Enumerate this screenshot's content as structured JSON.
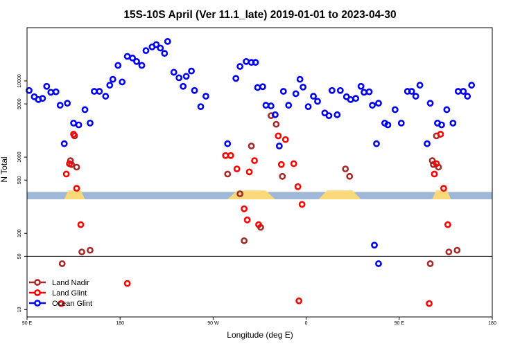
{
  "chart_data": {
    "type": "scatter",
    "title": "15S-10S April (Ver 11.1_late)   2019-01-01 to 2023-04-30",
    "xlabel": "Longitude (deg E)",
    "ylabel": "N Total",
    "x_ticks": [
      {
        "value": 90,
        "label": "90 E"
      },
      {
        "value": 180,
        "label": "180"
      },
      {
        "value": 270,
        "label": "90 W"
      },
      {
        "value": 360,
        "label": "0"
      },
      {
        "value": 450,
        "label": "90 E"
      },
      {
        "value": 540,
        "label": "180"
      }
    ],
    "xlim": [
      90,
      540
    ],
    "y_scale": "log",
    "ylim": [
      8,
      50000
    ],
    "y_ticks": [
      {
        "value": 10,
        "label": "10"
      },
      {
        "value": 50,
        "label": "50"
      },
      {
        "value": 100,
        "label": "100"
      },
      {
        "value": 500,
        "label": "500"
      },
      {
        "value": 1000,
        "label": "1000"
      },
      {
        "value": 5000,
        "label": "5000"
      },
      {
        "value": 10000,
        "label": "10000"
      }
    ],
    "reference_line_y": 50,
    "legend_position": "bottom-left",
    "colors": {
      "land_nadir": "#a52a2a",
      "land_glint": "#ff0000",
      "ocean_glint": "#0000ee",
      "ocean_band": "#a0b8d8",
      "land_band": "#f8d878"
    },
    "band_y_range": [
      280,
      350
    ],
    "land_segments": [
      [
        126,
        146
      ],
      [
        284,
        330
      ],
      [
        372,
        413
      ],
      [
        482,
        500
      ]
    ],
    "series": [
      {
        "name": "Land Nadir",
        "color": "#a52a2a",
        "points": [
          [
            124,
            40
          ],
          [
            132,
            900
          ],
          [
            133,
            800
          ],
          [
            136,
            1900
          ],
          [
            138,
            740
          ],
          [
            143,
            57
          ],
          [
            151,
            60
          ],
          [
            284,
            600
          ],
          [
            296,
            330
          ],
          [
            300,
            80
          ],
          [
            307,
            1400
          ],
          [
            316,
            120
          ],
          [
            326,
            3500
          ],
          [
            331,
            2700
          ],
          [
            337,
            560
          ],
          [
            398,
            700
          ],
          [
            402,
            560
          ],
          [
            480,
            40
          ],
          [
            482,
            900
          ],
          [
            483,
            800
          ],
          [
            486,
            1900
          ],
          [
            488,
            740
          ],
          [
            498,
            57
          ],
          [
            506,
            60
          ]
        ]
      },
      {
        "name": "Land Glint",
        "color": "#ff0000",
        "points": [
          [
            123,
            12
          ],
          [
            128,
            600
          ],
          [
            131,
            820
          ],
          [
            135,
            2000
          ],
          [
            138,
            390
          ],
          [
            142,
            130
          ],
          [
            187,
            22
          ],
          [
            282,
            1050
          ],
          [
            287,
            1050
          ],
          [
            293,
            700
          ],
          [
            300,
            210
          ],
          [
            303,
            150
          ],
          [
            305,
            640
          ],
          [
            310,
            900
          ],
          [
            314,
            130
          ],
          [
            333,
            1900
          ],
          [
            336,
            800
          ],
          [
            340,
            1700
          ],
          [
            348,
            820
          ],
          [
            352,
            410
          ],
          [
            356,
            240
          ],
          [
            353,
            13
          ],
          [
            479,
            12
          ],
          [
            484,
            600
          ],
          [
            486,
            820
          ],
          [
            490,
            2000
          ],
          [
            493,
            390
          ],
          [
            497,
            130
          ]
        ]
      },
      {
        "name": "Ocean Glint",
        "color": "#0000ee",
        "points": [
          [
            92,
            7500
          ],
          [
            97,
            6200
          ],
          [
            101,
            5700
          ],
          [
            105,
            5900
          ],
          [
            109,
            8500
          ],
          [
            113,
            7100
          ],
          [
            118,
            7200
          ],
          [
            122,
            4800
          ],
          [
            126,
            1500
          ],
          [
            129,
            5100
          ],
          [
            135,
            2800
          ],
          [
            140,
            2650
          ],
          [
            146,
            4200
          ],
          [
            151,
            2800
          ],
          [
            155,
            7300
          ],
          [
            160,
            7300
          ],
          [
            166,
            6300
          ],
          [
            170,
            8800
          ],
          [
            173,
            10500
          ],
          [
            178,
            16000
          ],
          [
            182,
            9700
          ],
          [
            187,
            21000
          ],
          [
            192,
            20000
          ],
          [
            196,
            18000
          ],
          [
            201,
            16000
          ],
          [
            205,
            25000
          ],
          [
            211,
            28000
          ],
          [
            215,
            30000
          ],
          [
            219,
            27000
          ],
          [
            223,
            23000
          ],
          [
            226,
            33000
          ],
          [
            232,
            13000
          ],
          [
            237,
            11000
          ],
          [
            241,
            8500
          ],
          [
            244,
            11500
          ],
          [
            249,
            13500
          ],
          [
            252,
            7500
          ],
          [
            258,
            4600
          ],
          [
            263,
            6300
          ],
          [
            284,
            1500
          ],
          [
            292,
            10800
          ],
          [
            296,
            15500
          ],
          [
            302,
            18000
          ],
          [
            307,
            17500
          ],
          [
            311,
            17500
          ],
          [
            313,
            8200
          ],
          [
            318,
            8400
          ],
          [
            321,
            4800
          ],
          [
            326,
            4700
          ],
          [
            330,
            3600
          ],
          [
            334,
            1400
          ],
          [
            338,
            7300
          ],
          [
            343,
            4800
          ],
          [
            350,
            6800
          ],
          [
            354,
            10500
          ],
          [
            357,
            8300
          ],
          [
            362,
            4600
          ],
          [
            367,
            6300
          ],
          [
            371,
            5400
          ],
          [
            378,
            3800
          ],
          [
            382,
            3500
          ],
          [
            385,
            7500
          ],
          [
            390,
            3600
          ],
          [
            393,
            7500
          ],
          [
            399,
            6200
          ],
          [
            403,
            5700
          ],
          [
            408,
            5900
          ],
          [
            413,
            8500
          ],
          [
            416,
            7100
          ],
          [
            421,
            7200
          ],
          [
            424,
            4800
          ],
          [
            428,
            1500
          ],
          [
            430,
            5100
          ],
          [
            436,
            2800
          ],
          [
            439,
            2650
          ],
          [
            446,
            4200
          ],
          [
            452,
            2800
          ],
          [
            458,
            7300
          ],
          [
            462,
            7300
          ],
          [
            466,
            6300
          ],
          [
            470,
            8800
          ],
          [
            477,
            1500
          ],
          [
            480,
            5100
          ],
          [
            487,
            2800
          ],
          [
            491,
            2650
          ],
          [
            496,
            4200
          ],
          [
            502,
            2800
          ],
          [
            507,
            7300
          ],
          [
            512,
            7300
          ],
          [
            516,
            6300
          ],
          [
            520,
            8800
          ],
          [
            426,
            70
          ],
          [
            430,
            40
          ]
        ]
      }
    ]
  }
}
